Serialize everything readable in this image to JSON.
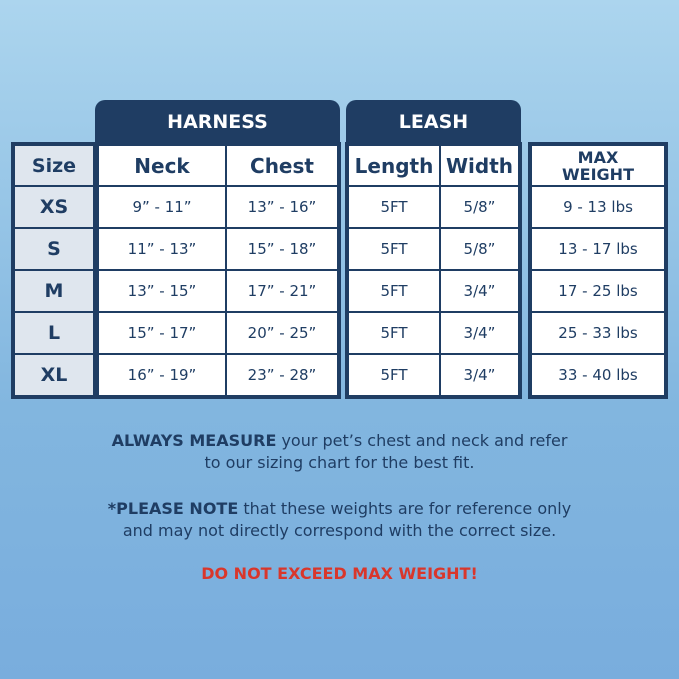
{
  "table": {
    "groups": [
      "HARNESS",
      "LEASH"
    ],
    "headers": [
      "Size",
      "Neck",
      "Chest",
      "Length",
      "Width",
      "MAX WEIGHT"
    ],
    "rows": [
      [
        "XS",
        "9” - 11”",
        "13” - 16”",
        "5FT",
        "5/8”",
        "9 - 13 lbs"
      ],
      [
        "S",
        "11” - 13”",
        "15” - 18”",
        "5FT",
        "5/8”",
        "13 - 17 lbs"
      ],
      [
        "M",
        "13” - 15”",
        "17” - 21”",
        "5FT",
        "3/4”",
        "17 - 25 lbs"
      ],
      [
        "L",
        "15” - 17”",
        "20” - 25”",
        "5FT",
        "3/4”",
        "25 - 33 lbs"
      ],
      [
        "XL",
        "16” - 19”",
        "23” - 28”",
        "5FT",
        "3/4”",
        "33 - 40 lbs"
      ]
    ]
  },
  "notes": [
    {
      "bold": "ALWAYS MEASURE",
      "lines": [
        " your pet’s chest and neck and refer",
        "to our sizing chart for the best fit."
      ]
    },
    {
      "bold": "*PLEASE NOTE",
      "lines": [
        " that these weights are for reference only",
        "and may not directly correspond with the correct size."
      ]
    }
  ],
  "warning": "DO NOT EXCEED MAX WEIGHT!"
}
